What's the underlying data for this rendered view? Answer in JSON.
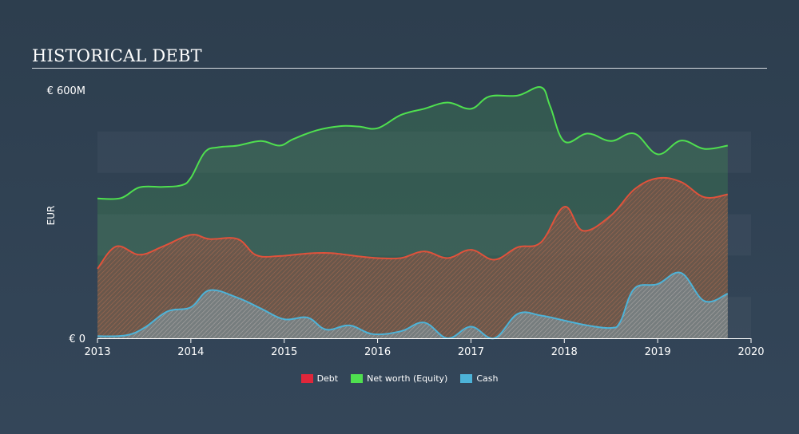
{
  "header": {
    "title": "HISTORICAL DEBT"
  },
  "chart_data": {
    "type": "area",
    "title": "HISTORICAL DEBT",
    "xlabel": "",
    "ylabel": "EUR",
    "xlim": [
      2013,
      2020
    ],
    "ylim": [
      0,
      600
    ],
    "x_ticks": [
      "2013",
      "2014",
      "2015",
      "2016",
      "2017",
      "2018",
      "2019",
      "2020"
    ],
    "y_ticks": [
      {
        "value": 0,
        "label": "€ 0"
      },
      {
        "value": 600,
        "label": "€ 600M"
      }
    ],
    "grid": true,
    "legend_position": "bottom-center",
    "series": [
      {
        "name": "Net worth (Equity)",
        "color": "#4fe04f",
        "x": [
          2013.0,
          2013.25,
          2013.45,
          2013.7,
          2013.9,
          2014.0,
          2014.15,
          2014.3,
          2014.5,
          2014.75,
          2014.95,
          2015.1,
          2015.35,
          2015.6,
          2015.8,
          2016.0,
          2016.25,
          2016.5,
          2016.75,
          2017.0,
          2017.2,
          2017.5,
          2017.75,
          2017.85,
          2018.0,
          2018.25,
          2018.5,
          2018.75,
          2019.0,
          2019.25,
          2019.5,
          2019.75
        ],
        "values": [
          338,
          339,
          365,
          366,
          370,
          388,
          450,
          462,
          466,
          477,
          466,
          482,
          503,
          513,
          512,
          508,
          540,
          555,
          570,
          555,
          585,
          587,
          607,
          560,
          476,
          495,
          477,
          495,
          445,
          478,
          458,
          466
        ]
      },
      {
        "name": "Debt",
        "color": "#e0523b",
        "x": [
          2013.0,
          2013.2,
          2013.45,
          2013.7,
          2014.0,
          2014.2,
          2014.5,
          2014.7,
          2014.95,
          2015.25,
          2015.5,
          2015.8,
          2016.0,
          2016.25,
          2016.5,
          2016.75,
          2017.0,
          2017.25,
          2017.5,
          2017.75,
          2018.0,
          2018.2,
          2018.5,
          2018.75,
          2019.0,
          2019.25,
          2019.5,
          2019.75
        ],
        "values": [
          168,
          222,
          202,
          222,
          250,
          240,
          240,
          201,
          199,
          205,
          206,
          198,
          194,
          194,
          210,
          194,
          214,
          190,
          220,
          232,
          318,
          260,
          297,
          360,
          387,
          378,
          341,
          348
        ]
      },
      {
        "name": "Cash",
        "color": "#4db3d8",
        "x": [
          2013.0,
          2013.3,
          2013.5,
          2013.75,
          2014.0,
          2014.2,
          2014.5,
          2014.75,
          2015.0,
          2015.25,
          2015.45,
          2015.7,
          2015.95,
          2016.25,
          2016.5,
          2016.75,
          2017.0,
          2017.25,
          2017.5,
          2017.75,
          2018.0,
          2018.25,
          2018.5,
          2018.6,
          2018.75,
          2019.0,
          2019.25,
          2019.5,
          2019.75
        ],
        "values": [
          5,
          7,
          25,
          65,
          75,
          116,
          98,
          72,
          46,
          50,
          21,
          31,
          10,
          17,
          38,
          0,
          28,
          0,
          59,
          55,
          43,
          31,
          25,
          40,
          120,
          131,
          158,
          90,
          108
        ]
      }
    ]
  },
  "legend": {
    "items": [
      {
        "label": "Debt",
        "color": "#e0263a"
      },
      {
        "label": "Net worth (Equity)",
        "color": "#4fe04f"
      },
      {
        "label": "Cash",
        "color": "#4db3d8"
      }
    ]
  }
}
